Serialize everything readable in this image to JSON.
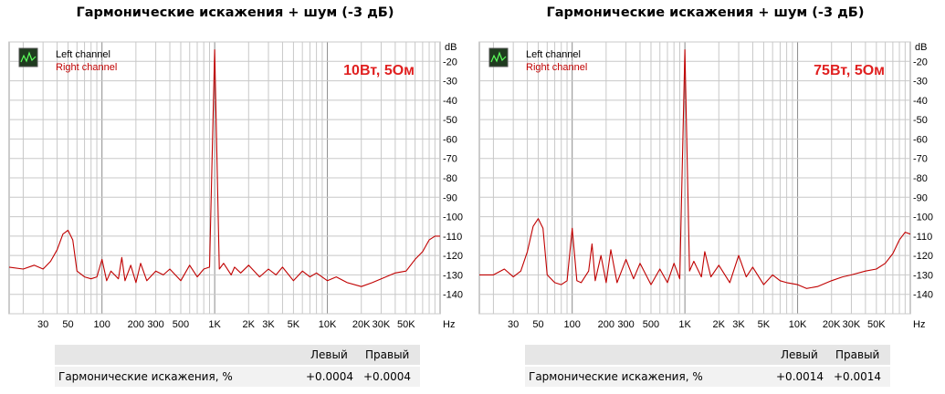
{
  "chart_data": [
    {
      "type": "line",
      "title": "Гармонические искажения + шум (-3 дБ)",
      "annotation": "10Вт, 5Ом",
      "legend": [
        "Left channel",
        "Right channel"
      ],
      "legend_position": "top-left",
      "xscale": "log",
      "xlim": [
        15,
        100000
      ],
      "ylim": [
        -150,
        -10
      ],
      "y_unit": "dB",
      "x_unit": "Hz",
      "grid": true,
      "xticks": [
        {
          "v": 30,
          "l": "30"
        },
        {
          "v": 50,
          "l": "50"
        },
        {
          "v": 100,
          "l": "100"
        },
        {
          "v": 200,
          "l": "200"
        },
        {
          "v": 300,
          "l": "300"
        },
        {
          "v": 500,
          "l": "500"
        },
        {
          "v": 1000,
          "l": "1K"
        },
        {
          "v": 2000,
          "l": "2K"
        },
        {
          "v": 3000,
          "l": "3K"
        },
        {
          "v": 5000,
          "l": "5K"
        },
        {
          "v": 10000,
          "l": "10K"
        },
        {
          "v": 20000,
          "l": "20K"
        },
        {
          "v": 30000,
          "l": "30K"
        },
        {
          "v": 50000,
          "l": "50K"
        }
      ],
      "yticks": [
        -20,
        -30,
        -40,
        -50,
        -60,
        -70,
        -80,
        -90,
        -100,
        -110,
        -120,
        -130,
        -140
      ],
      "series": [
        {
          "name": "Right channel",
          "color": "#c00000",
          "x": [
            15,
            20,
            25,
            30,
            35,
            40,
            45,
            50,
            55,
            60,
            70,
            80,
            90,
            100,
            110,
            120,
            140,
            150,
            160,
            180,
            200,
            220,
            250,
            300,
            350,
            400,
            500,
            600,
            700,
            800,
            900,
            1000,
            1100,
            1200,
            1400,
            1500,
            1700,
            2000,
            2500,
            3000,
            3500,
            4000,
            5000,
            6000,
            7000,
            8000,
            10000,
            12000,
            15000,
            20000,
            25000,
            30000,
            40000,
            50000,
            60000,
            70000,
            80000,
            90000,
            100000
          ],
          "y": [
            -126,
            -127,
            -125,
            -127,
            -123,
            -117,
            -109,
            -107,
            -112,
            -128,
            -131,
            -132,
            -131,
            -122,
            -133,
            -128,
            -132,
            -121,
            -133,
            -125,
            -134,
            -124,
            -133,
            -128,
            -130,
            -127,
            -133,
            -125,
            -131,
            -127,
            -126,
            -14,
            -127,
            -124,
            -130,
            -126,
            -129,
            -125,
            -131,
            -127,
            -130,
            -126,
            -133,
            -128,
            -131,
            -129,
            -133,
            -131,
            -134,
            -136,
            -134,
            -132,
            -129,
            -128,
            -122,
            -118,
            -112,
            -110,
            -110
          ]
        }
      ]
    },
    {
      "type": "line",
      "title": "Гармонические искажения + шум (-3 дБ)",
      "annotation": "75Вт, 5Ом",
      "legend": [
        "Left channel",
        "Right channel"
      ],
      "legend_position": "top-left",
      "xscale": "log",
      "xlim": [
        15,
        100000
      ],
      "ylim": [
        -150,
        -10
      ],
      "y_unit": "dB",
      "x_unit": "Hz",
      "grid": true,
      "xticks": [
        {
          "v": 30,
          "l": "30"
        },
        {
          "v": 50,
          "l": "50"
        },
        {
          "v": 100,
          "l": "100"
        },
        {
          "v": 200,
          "l": "200"
        },
        {
          "v": 300,
          "l": "300"
        },
        {
          "v": 500,
          "l": "500"
        },
        {
          "v": 1000,
          "l": "1K"
        },
        {
          "v": 2000,
          "l": "2K"
        },
        {
          "v": 3000,
          "l": "3K"
        },
        {
          "v": 5000,
          "l": "5K"
        },
        {
          "v": 10000,
          "l": "10K"
        },
        {
          "v": 20000,
          "l": "20K"
        },
        {
          "v": 30000,
          "l": "30K"
        },
        {
          "v": 50000,
          "l": "50K"
        }
      ],
      "yticks": [
        -20,
        -30,
        -40,
        -50,
        -60,
        -70,
        -80,
        -90,
        -100,
        -110,
        -120,
        -130,
        -140
      ],
      "series": [
        {
          "name": "Right channel",
          "color": "#c00000",
          "x": [
            15,
            20,
            25,
            30,
            35,
            40,
            45,
            50,
            55,
            60,
            70,
            80,
            90,
            100,
            110,
            120,
            140,
            150,
            160,
            180,
            200,
            220,
            250,
            300,
            350,
            400,
            500,
            600,
            700,
            800,
            900,
            1000,
            1100,
            1200,
            1400,
            1500,
            1700,
            2000,
            2500,
            3000,
            3500,
            4000,
            5000,
            6000,
            7000,
            8000,
            10000,
            12000,
            15000,
            20000,
            25000,
            30000,
            40000,
            50000,
            60000,
            70000,
            80000,
            90000,
            100000
          ],
          "y": [
            -130,
            -130,
            -127,
            -131,
            -128,
            -118,
            -105,
            -101,
            -106,
            -130,
            -134,
            -135,
            -133,
            -106,
            -133,
            -134,
            -128,
            -114,
            -133,
            -120,
            -134,
            -117,
            -134,
            -122,
            -132,
            -124,
            -135,
            -127,
            -134,
            -124,
            -132,
            -14,
            -128,
            -123,
            -131,
            -118,
            -131,
            -125,
            -134,
            -120,
            -131,
            -126,
            -135,
            -130,
            -133,
            -134,
            -135,
            -137,
            -136,
            -133,
            -131,
            -130,
            -128,
            -127,
            -124,
            -119,
            -112,
            -108,
            -109
          ]
        }
      ]
    }
  ],
  "stats": [
    {
      "col_left": "Левый",
      "col_right": "Правый",
      "label": "Гармонические искажения, %",
      "left": "+0.0004",
      "right": "+0.0004"
    },
    {
      "col_left": "Левый",
      "col_right": "Правый",
      "label": "Гармонические искажения, %",
      "left": "+0.0014",
      "right": "+0.0014"
    }
  ]
}
